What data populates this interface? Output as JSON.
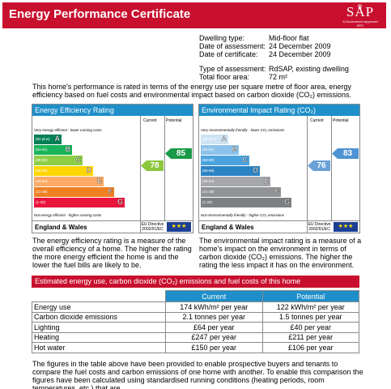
{
  "header": {
    "title": "Energy Performance Certificate",
    "logo_text": "SAP",
    "logo_tag": "A Government approved EPC"
  },
  "details": [
    {
      "label": "Dwelling type:",
      "value": "Mid-floor flat"
    },
    {
      "label": "Date of assessment:",
      "value": "24 December 2009"
    },
    {
      "label": "Date of certificate:",
      "value": "24 December 2009"
    },
    {
      "label": "Type of assessment:",
      "value": "RdSAP, existing dwelling"
    },
    {
      "label": "Total floor area:",
      "value": "72 m²"
    }
  ],
  "intro": "This home's performance is rated in terms of the energy use per square metre of floor area, energy efficiency based on fuel costs and environmental impact based on carbon dioxide (CO₂) emissions.",
  "efficiency": {
    "title": "Energy Efficiency Rating",
    "col_current": "Current",
    "col_potential": "Potential",
    "top_note": "Very energy efficient - lower running costs",
    "bottom_note": "Not energy efficient - higher running costs",
    "current": 78,
    "potential": 85,
    "current_color": "#8cc63f",
    "potential_color": "#1a9a48",
    "bands": [
      {
        "range": "(92 plus)",
        "letter": "A",
        "color": "#008054"
      },
      {
        "range": "(81-91)",
        "letter": "B",
        "color": "#19b459"
      },
      {
        "range": "(69-80)",
        "letter": "C",
        "color": "#8dce46"
      },
      {
        "range": "(55-68)",
        "letter": "D",
        "color": "#ffd500"
      },
      {
        "range": "(39-54)",
        "letter": "E",
        "color": "#fcaa65"
      },
      {
        "range": "(21-38)",
        "letter": "F",
        "color": "#ef8023"
      },
      {
        "range": "(1-20)",
        "letter": "G",
        "color": "#e9153b"
      }
    ],
    "region": "England & Wales",
    "eu_directive": "EU Directive 2002/91/EC"
  },
  "environment": {
    "title": "Environmental Impact Rating (CO₂)",
    "col_current": "Current",
    "col_potential": "Potential",
    "top_note": "Very environmentally friendly - lower CO₂ emissions",
    "bottom_note": "Not environmentally friendly - higher CO₂ emissions",
    "current": 76,
    "potential": 83,
    "current_color": "#6aa0d6",
    "potential_color": "#4e93d2",
    "bands": [
      {
        "range": "(92 plus)",
        "letter": "A",
        "color": "#cde3f3"
      },
      {
        "range": "(81-91)",
        "letter": "B",
        "color": "#8cc2ea"
      },
      {
        "range": "(69-80)",
        "letter": "C",
        "color": "#4ba3de"
      },
      {
        "range": "(55-68)",
        "letter": "D",
        "color": "#2d84c4"
      },
      {
        "range": "(39-54)",
        "letter": "E",
        "color": "#a5a7aa"
      },
      {
        "range": "(21-38)",
        "letter": "F",
        "color": "#919396"
      },
      {
        "range": "(1-20)",
        "letter": "G",
        "color": "#7d7f82"
      }
    ],
    "region": "England & Wales",
    "eu_directive": "EU Directive 2002/91/EC"
  },
  "efficiency_desc": "The energy efficiency rating is a measure of the overall efficiency of a home. The higher the rating the more energy efficient the home is and the lower the fuel bills are likely to be.",
  "environment_desc": "The environmental impact rating is a measure of a home's impact on the environment in terms of carbon dioxide (CO₂) emissions. The higher the rating the less impact it has on the environment.",
  "estimates": {
    "title": "Estimated energy use, carbon dioxide (CO₂) emissions and fuel costs of this home",
    "col_current": "Current",
    "col_potential": "Potential",
    "rows": [
      {
        "label": "Energy use",
        "current": "174 kWh/m² per year",
        "potential": "122 kWh/m² per year"
      },
      {
        "label": "Carbon dioxide emissions",
        "current": "2.1 tonnes per year",
        "potential": "1.5 tonnes per year"
      },
      {
        "label": "Lighting",
        "current": "£64 per year",
        "potential": "£40 per year"
      },
      {
        "label": "Heating",
        "current": "£247 per year",
        "potential": "£211 per year"
      },
      {
        "label": "Hot water",
        "current": "£150 per year",
        "potential": "£106 per year"
      }
    ]
  },
  "footnote": "The figures in the table above have been provided to enable prospective buyers and tenants to compare the fuel costs and carbon emissions of one home with another. To enable this comparison the figures have been calculated using standardised running conditions (heating periods, room temperatures, etc.) that are"
}
